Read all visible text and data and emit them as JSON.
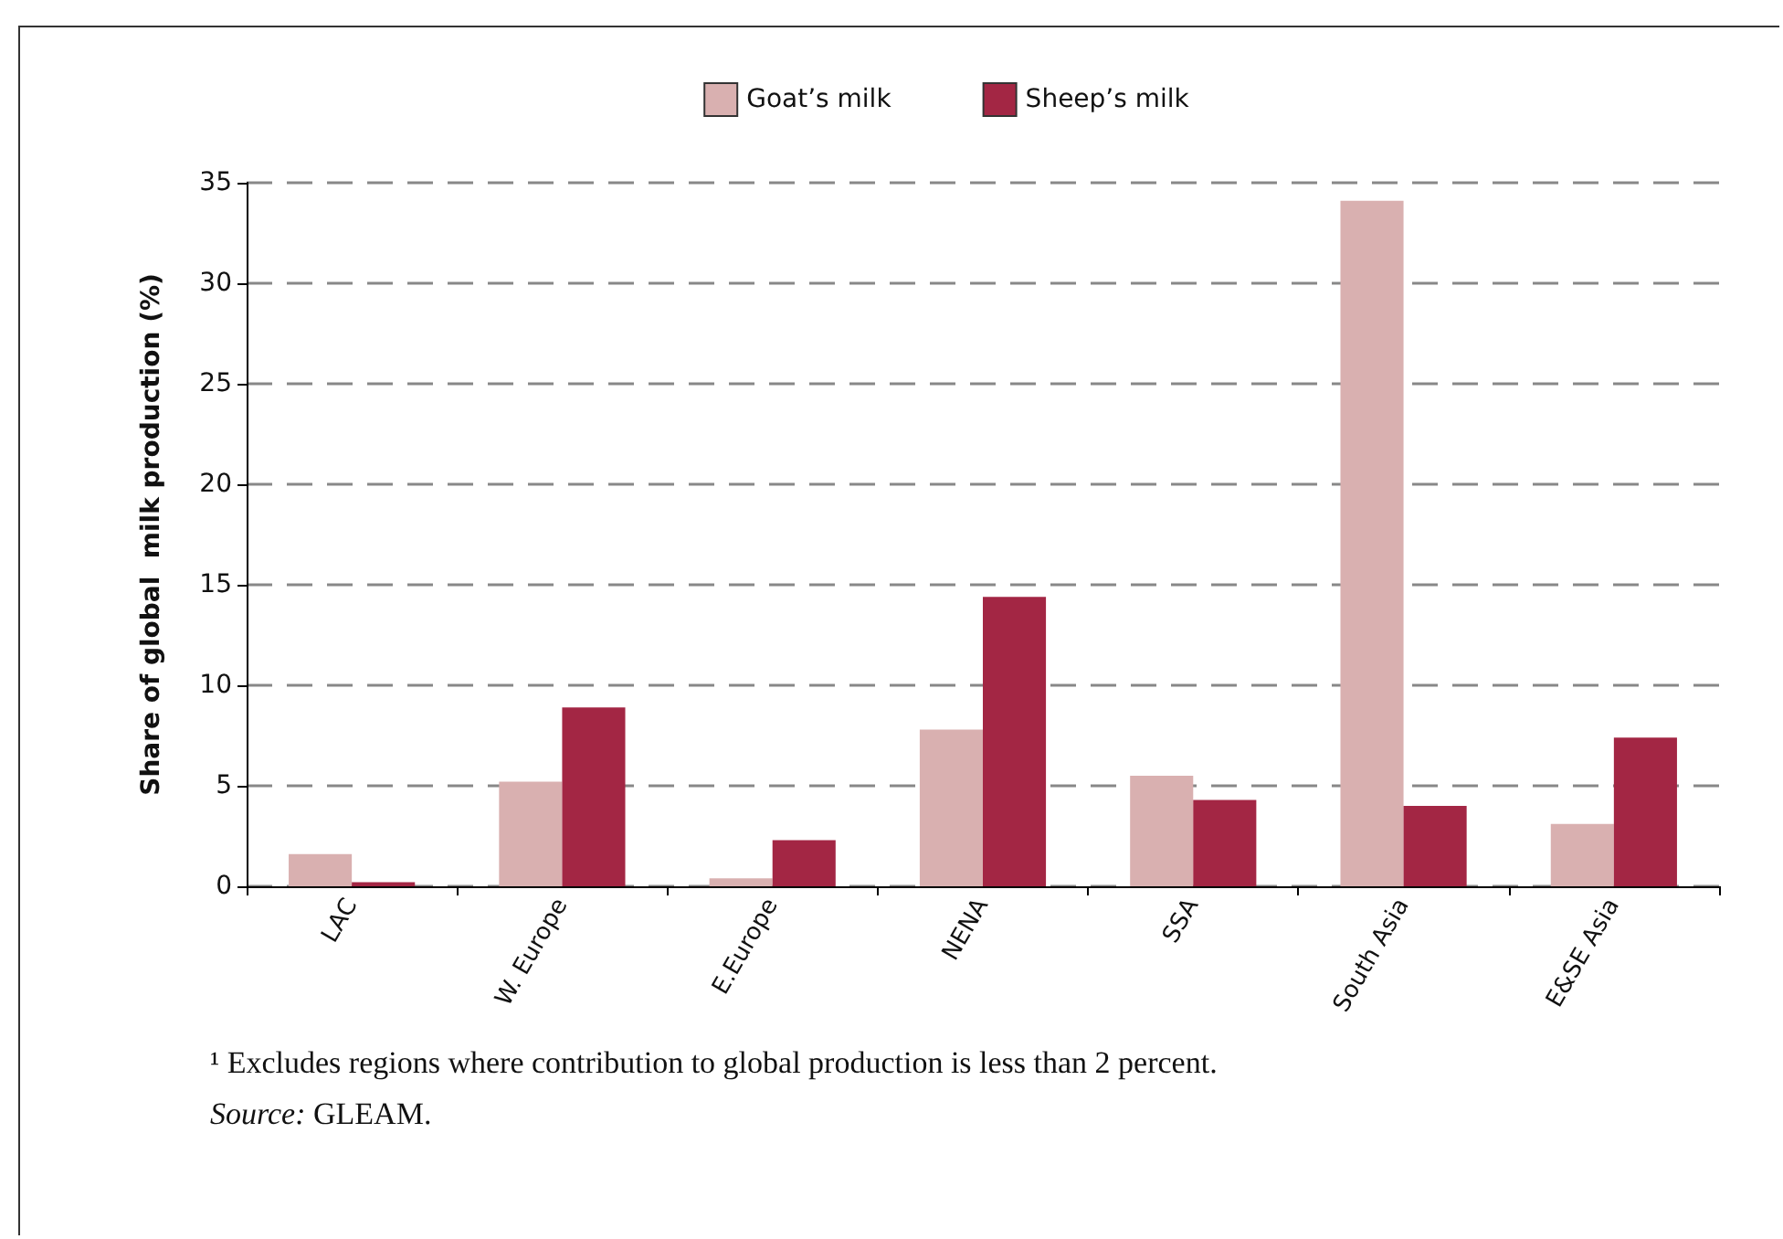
{
  "chart_data": {
    "type": "bar",
    "ylabel": "Share of global  milk production (%)",
    "categories": [
      "LAC",
      "W. Europe",
      "E.Europe",
      "NENA",
      "SSA",
      "South Asia",
      "E&SE Asia"
    ],
    "series": [
      {
        "name": "Goat’s milk",
        "color": "#d9b0b0",
        "values": [
          1.6,
          5.2,
          0.4,
          7.8,
          5.5,
          34.1,
          3.1
        ]
      },
      {
        "name": "Sheep’s milk",
        "color": "#a32644",
        "values": [
          0.2,
          8.9,
          2.3,
          14.4,
          4.3,
          4.0,
          7.4
        ]
      }
    ],
    "ylim": [
      0,
      35
    ],
    "yticks": [
      0,
      5,
      10,
      15,
      20,
      25,
      30,
      35
    ],
    "grid": "y",
    "legend": "top",
    "annotations": [
      "¹ Excludes regions where contribution to global production is less than 2 percent.",
      "Source: GLEAM."
    ]
  }
}
